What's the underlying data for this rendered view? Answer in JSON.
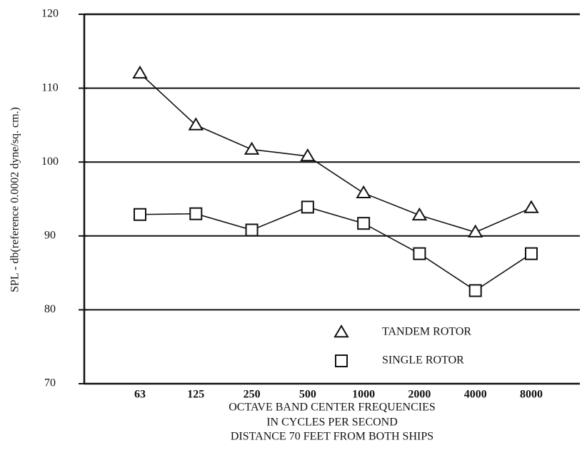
{
  "chart_data": {
    "type": "line",
    "categories": [
      "63",
      "125",
      "250",
      "500",
      "1000",
      "2000",
      "4000",
      "8000"
    ],
    "series": [
      {
        "name": "TANDEM ROTOR",
        "color": "#111111",
        "marker": "triangle",
        "values": [
          112,
          105,
          101.7,
          100.8,
          95.8,
          92.8,
          90.5,
          93.8
        ]
      },
      {
        "name": "SINGLE ROTOR",
        "color": "#111111",
        "marker": "square",
        "values": [
          92.9,
          93,
          90.8,
          93.9,
          91.7,
          87.6,
          82.6,
          87.6
        ]
      }
    ],
    "ylabel": "SPL  -  db(reference 0.0002 dyne/sq. cm.)",
    "xlabel": [
      "OCTAVE BAND CENTER FREQUENCIES",
      "IN CYCLES PER SECOND",
      "DISTANCE 70 FEET FROM BOTH SHIPS"
    ],
    "ylim": [
      70,
      120
    ],
    "yticks": [
      70,
      80,
      90,
      100,
      110,
      120
    ],
    "grid": true
  }
}
